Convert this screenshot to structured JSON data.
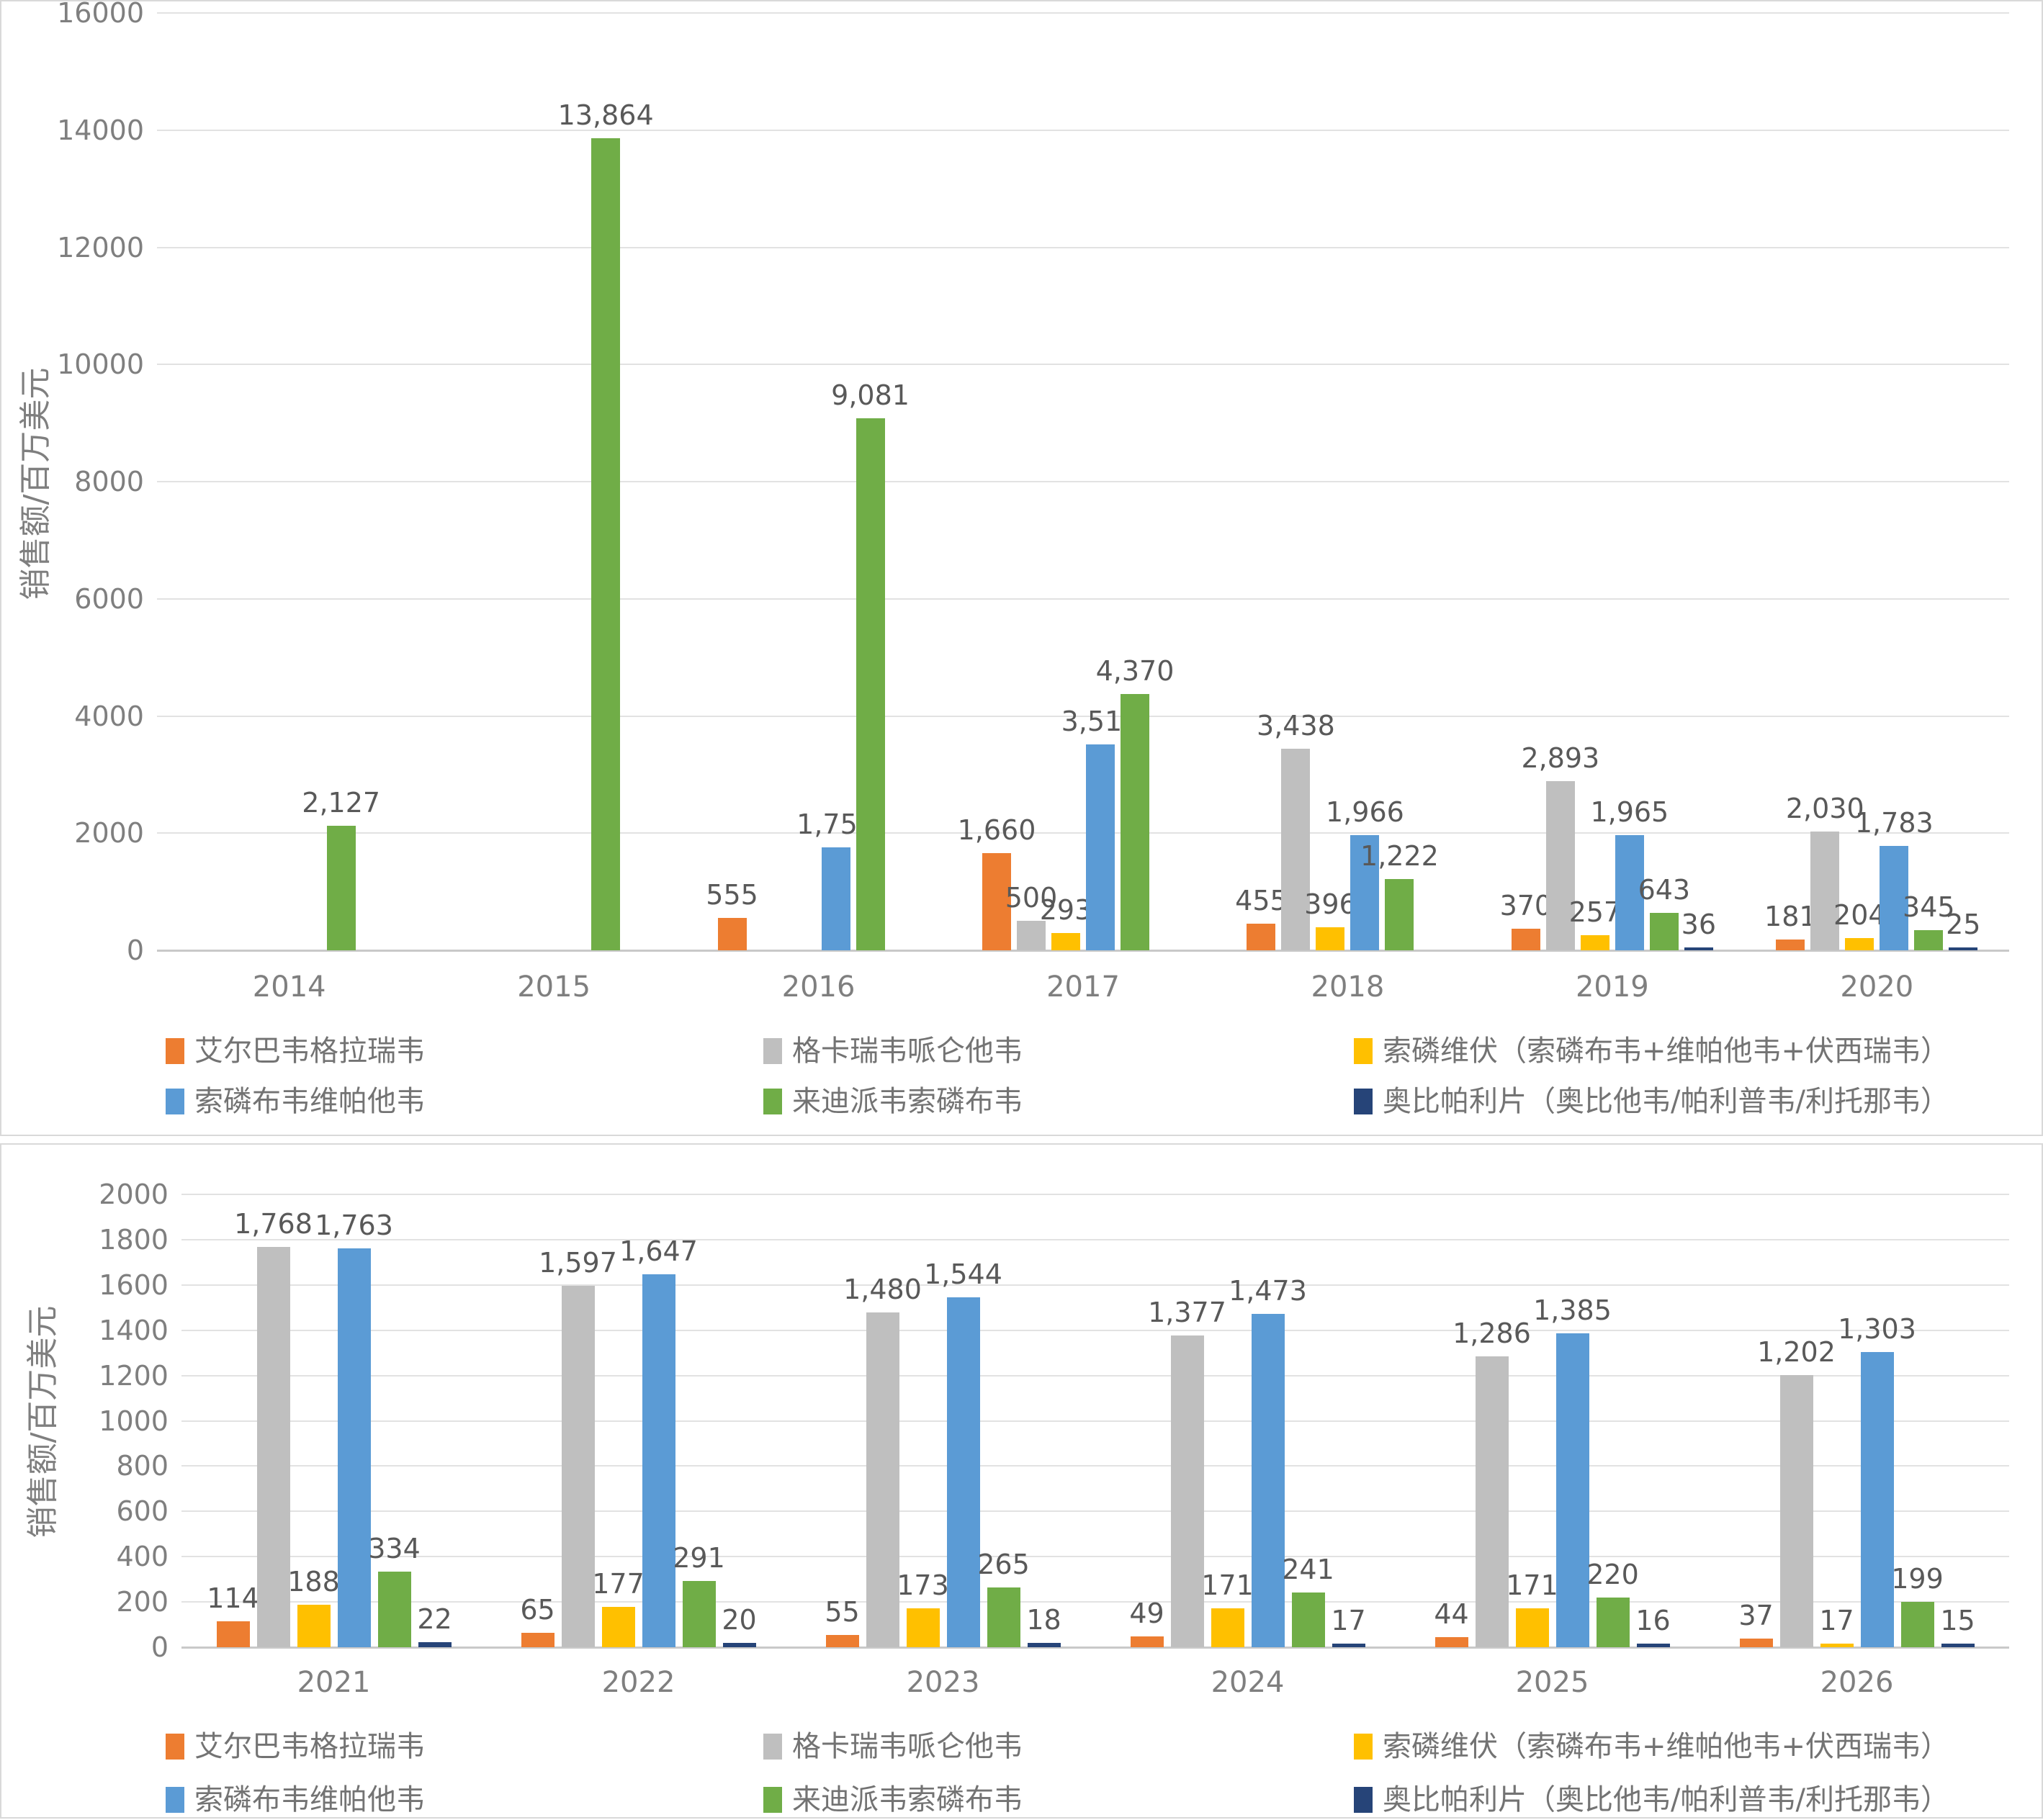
{
  "page_background": "#FFFFFF",
  "style_colors": {
    "gridline": "#E2E2E2",
    "axis_line": "#C9C9C9",
    "tick_text": "#7F7F7F",
    "data_label_text": "#595959",
    "legend_text": "#737373",
    "chart_border": "#D9D9D9"
  },
  "chart_data": [
    {
      "type": "bar",
      "title": "",
      "y_axis_title": "销售额/百万美元",
      "xlabel": "",
      "ylabel": "销售额/百万美元",
      "ylim": [
        0,
        16000
      ],
      "y_step": 2000,
      "grid": true,
      "legend_position": "bottom",
      "categories": [
        "2014",
        "2015",
        "2016",
        "2017",
        "2018",
        "2019",
        "2020"
      ],
      "series": [
        {
          "name": "艾尔巴韦格拉瑞韦",
          "color": "#ED7D31",
          "values": [
            null,
            null,
            555,
            1660,
            455,
            370,
            181
          ]
        },
        {
          "name": "格卡瑞韦哌仑他韦",
          "color": "#BFBFBF",
          "values": [
            null,
            null,
            null,
            500,
            3438,
            2893,
            2030
          ]
        },
        {
          "name": "索磷维伏（索磷布韦+维帕他韦+伏西瑞韦）",
          "color": "#FFC000",
          "values": [
            null,
            null,
            null,
            293,
            396,
            257,
            204
          ]
        },
        {
          "name": "索磷布韦维帕他韦",
          "color": "#5B9BD5",
          "values": [
            null,
            null,
            1752,
            3510,
            1966,
            1965,
            1783
          ]
        },
        {
          "name": "来迪派韦索磷布韦",
          "color": "#70AD47",
          "values": [
            2127,
            13864,
            9081,
            4370,
            1222,
            643,
            345
          ]
        },
        {
          "name": "奥比帕利片（奥比他韦/帕利普韦/利托那韦）",
          "color": "#264478",
          "values": [
            null,
            null,
            null,
            null,
            null,
            36,
            25
          ]
        }
      ]
    },
    {
      "type": "bar",
      "title": "",
      "y_axis_title": "销售额/百万美元",
      "xlabel": "",
      "ylabel": "销售额/百万美元",
      "ylim": [
        0,
        2000
      ],
      "y_step": 200,
      "grid": true,
      "legend_position": "bottom",
      "categories": [
        "2021",
        "2022",
        "2023",
        "2024",
        "2025",
        "2026"
      ],
      "series": [
        {
          "name": "艾尔巴韦格拉瑞韦",
          "color": "#ED7D31",
          "values": [
            114,
            65,
            55,
            49,
            44,
            37
          ]
        },
        {
          "name": "格卡瑞韦哌仑他韦",
          "color": "#BFBFBF",
          "values": [
            1768,
            1597,
            1480,
            1377,
            1286,
            1202
          ]
        },
        {
          "name": "索磷维伏（索磷布韦+维帕他韦+伏西瑞韦）",
          "color": "#FFC000",
          "values": [
            188,
            177,
            173,
            171,
            171,
            17
          ]
        },
        {
          "name": "索磷布韦维帕他韦",
          "color": "#5B9BD5",
          "values": [
            1763,
            1647,
            1544,
            1473,
            1385,
            1303
          ]
        },
        {
          "name": "来迪派韦索磷布韦",
          "color": "#70AD47",
          "values": [
            334,
            291,
            265,
            241,
            220,
            199
          ]
        },
        {
          "name": "奥比帕利片（奥比他韦/帕利普韦/利托那韦）",
          "color": "#264478",
          "values": [
            22,
            20,
            18,
            17,
            16,
            15
          ]
        }
      ]
    }
  ]
}
